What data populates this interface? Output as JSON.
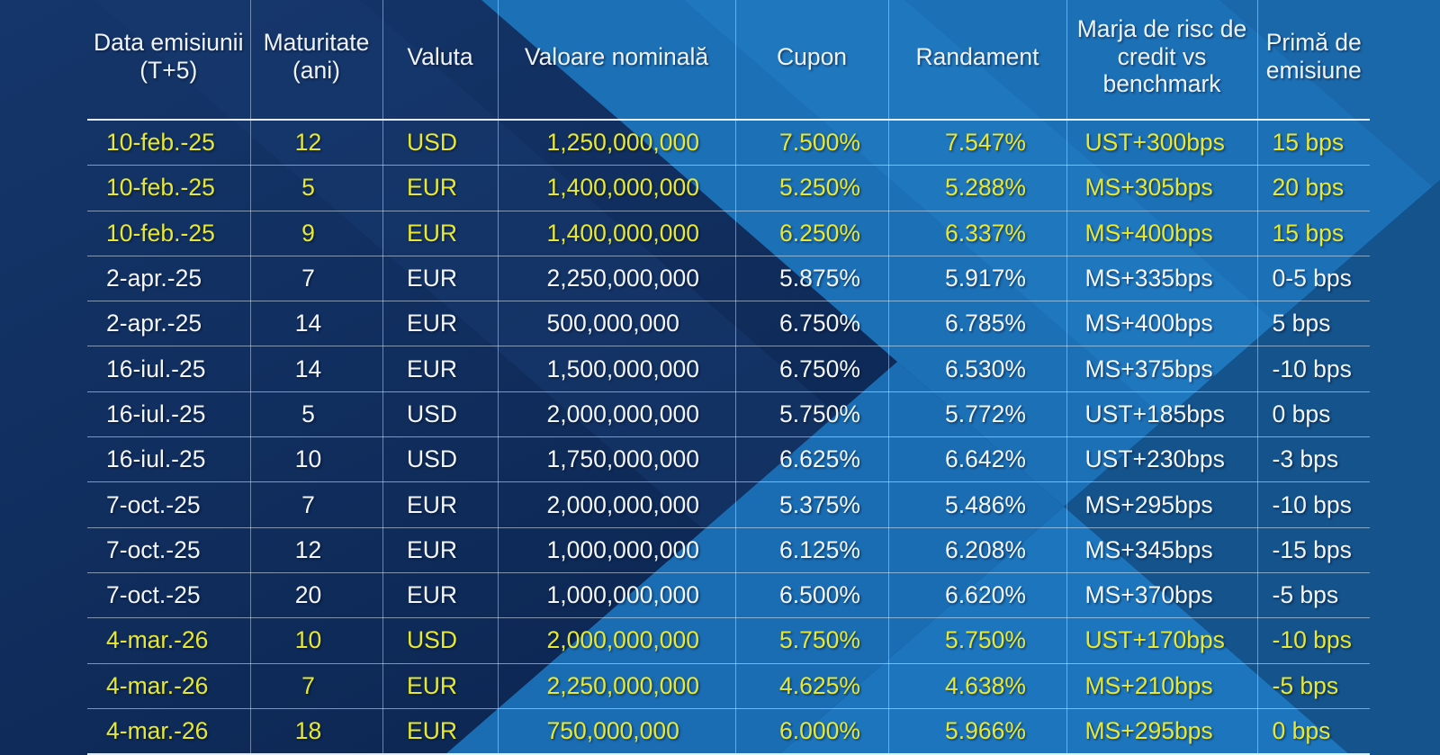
{
  "colors": {
    "base_navy": "#0e2a58",
    "bright_blue": "#1c70b6",
    "mid_blue": "#14538c",
    "grid_line": "#dce8f4",
    "text_white": "#f3f6fa",
    "highlight_yellow": "#e8e832"
  },
  "table": {
    "columns": [
      {
        "label": "Data emisiunii (T+5)"
      },
      {
        "label": "Maturitate (ani)"
      },
      {
        "label": "Valuta"
      },
      {
        "label": "Valoare nominală"
      },
      {
        "label": "Cupon"
      },
      {
        "label": "Randament"
      },
      {
        "label": "Marja de risc de credit vs benchmark"
      },
      {
        "label": "Primă de emisiune"
      }
    ],
    "rows": [
      {
        "date": "10-feb.-25",
        "maturity": "12",
        "currency": "USD",
        "nominal": "1,250,000,000",
        "coupon": "7.500%",
        "yield": "7.547%",
        "spread": "UST+300bps",
        "premium": "15 bps",
        "highlight": true
      },
      {
        "date": "10-feb.-25",
        "maturity": "5",
        "currency": "EUR",
        "nominal": "1,400,000,000",
        "coupon": "5.250%",
        "yield": "5.288%",
        "spread": "MS+305bps",
        "premium": "20 bps",
        "highlight": true
      },
      {
        "date": "10-feb.-25",
        "maturity": "9",
        "currency": "EUR",
        "nominal": "1,400,000,000",
        "coupon": "6.250%",
        "yield": "6.337%",
        "spread": "MS+400bps",
        "premium": "15 bps",
        "highlight": true
      },
      {
        "date": "2-apr.-25",
        "maturity": "7",
        "currency": "EUR",
        "nominal": "2,250,000,000",
        "coupon": "5.875%",
        "yield": "5.917%",
        "spread": "MS+335bps",
        "premium": "0-5 bps",
        "highlight": false
      },
      {
        "date": "2-apr.-25",
        "maturity": "14",
        "currency": "EUR",
        "nominal": "500,000,000",
        "coupon": "6.750%",
        "yield": "6.785%",
        "spread": "MS+400bps",
        "premium": "5 bps",
        "highlight": false
      },
      {
        "date": "16-iul.-25",
        "maturity": "14",
        "currency": "EUR",
        "nominal": "1,500,000,000",
        "coupon": "6.750%",
        "yield": "6.530%",
        "spread": "MS+375bps",
        "premium": "-10 bps",
        "highlight": false
      },
      {
        "date": "16-iul.-25",
        "maturity": "5",
        "currency": "USD",
        "nominal": "2,000,000,000",
        "coupon": "5.750%",
        "yield": "5.772%",
        "spread": "UST+185bps",
        "premium": "0 bps",
        "highlight": false
      },
      {
        "date": "16-iul.-25",
        "maturity": "10",
        "currency": "USD",
        "nominal": "1,750,000,000",
        "coupon": "6.625%",
        "yield": "6.642%",
        "spread": "UST+230bps",
        "premium": "-3 bps",
        "highlight": false
      },
      {
        "date": "7-oct.-25",
        "maturity": "7",
        "currency": "EUR",
        "nominal": "2,000,000,000",
        "coupon": "5.375%",
        "yield": "5.486%",
        "spread": "MS+295bps",
        "premium": "-10 bps",
        "highlight": false
      },
      {
        "date": "7-oct.-25",
        "maturity": "12",
        "currency": "EUR",
        "nominal": "1,000,000,000",
        "coupon": "6.125%",
        "yield": "6.208%",
        "spread": "MS+345bps",
        "premium": "-15 bps",
        "highlight": false
      },
      {
        "date": "7-oct.-25",
        "maturity": "20",
        "currency": "EUR",
        "nominal": "1,000,000,000",
        "coupon": "6.500%",
        "yield": "6.620%",
        "spread": "MS+370bps",
        "premium": "-5 bps",
        "highlight": false
      },
      {
        "date": "4-mar.-26",
        "maturity": "10",
        "currency": "USD",
        "nominal": "2,000,000,000",
        "coupon": "5.750%",
        "yield": "5.750%",
        "spread": "UST+170bps",
        "premium": "-10 bps",
        "highlight": true
      },
      {
        "date": "4-mar.-26",
        "maturity": "7",
        "currency": "EUR",
        "nominal": "2,250,000,000",
        "coupon": "4.625%",
        "yield": "4.638%",
        "spread": "MS+210bps",
        "premium": "-5 bps",
        "highlight": true
      },
      {
        "date": "4-mar.-26",
        "maturity": "18",
        "currency": "EUR",
        "nominal": "750,000,000",
        "coupon": "6.000%",
        "yield": "5.966%",
        "spread": "MS+295bps",
        "premium": "0 bps",
        "highlight": true
      }
    ]
  }
}
